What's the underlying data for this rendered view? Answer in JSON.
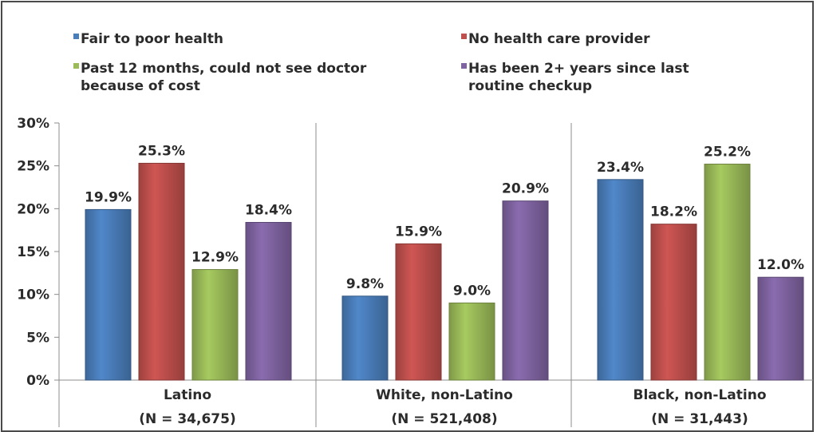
{
  "chart_data": {
    "type": "bar",
    "categories": [
      "Latino",
      "White, non-Latino",
      "Black, non-Latino"
    ],
    "category_sublabels": [
      "(N = 34,675)",
      "(N = 521,408)",
      "(N = 31,443)"
    ],
    "series": [
      {
        "name": "Fair to poor health",
        "color": "#4a7ebb",
        "values": [
          19.9,
          9.8,
          23.4
        ]
      },
      {
        "name": "No health care provider",
        "color": "#c0504d",
        "values": [
          25.3,
          15.9,
          18.2
        ]
      },
      {
        "name": "Past 12 months, could not see doctor\nbecause of cost",
        "color": "#9bbb59",
        "values": [
          12.9,
          9.0,
          25.2
        ]
      },
      {
        "name": "Has been 2+ years since last\nroutine checkup",
        "color": "#8064a2",
        "values": [
          18.4,
          20.9,
          12.0
        ]
      }
    ],
    "data_labels": [
      [
        "19.9%",
        "9.8%",
        "23.4%"
      ],
      [
        "25.3%",
        "15.9%",
        "18.2%"
      ],
      [
        "12.9%",
        "9.0%",
        "25.2%"
      ],
      [
        "18.4%",
        "20.9%",
        "12.0%"
      ]
    ],
    "yticks": [
      "0%",
      "5%",
      "10%",
      "15%",
      "20%",
      "25%",
      "30%"
    ],
    "ylim": [
      0,
      30
    ],
    "unit": "%",
    "legend_position": "top",
    "grid": false
  }
}
